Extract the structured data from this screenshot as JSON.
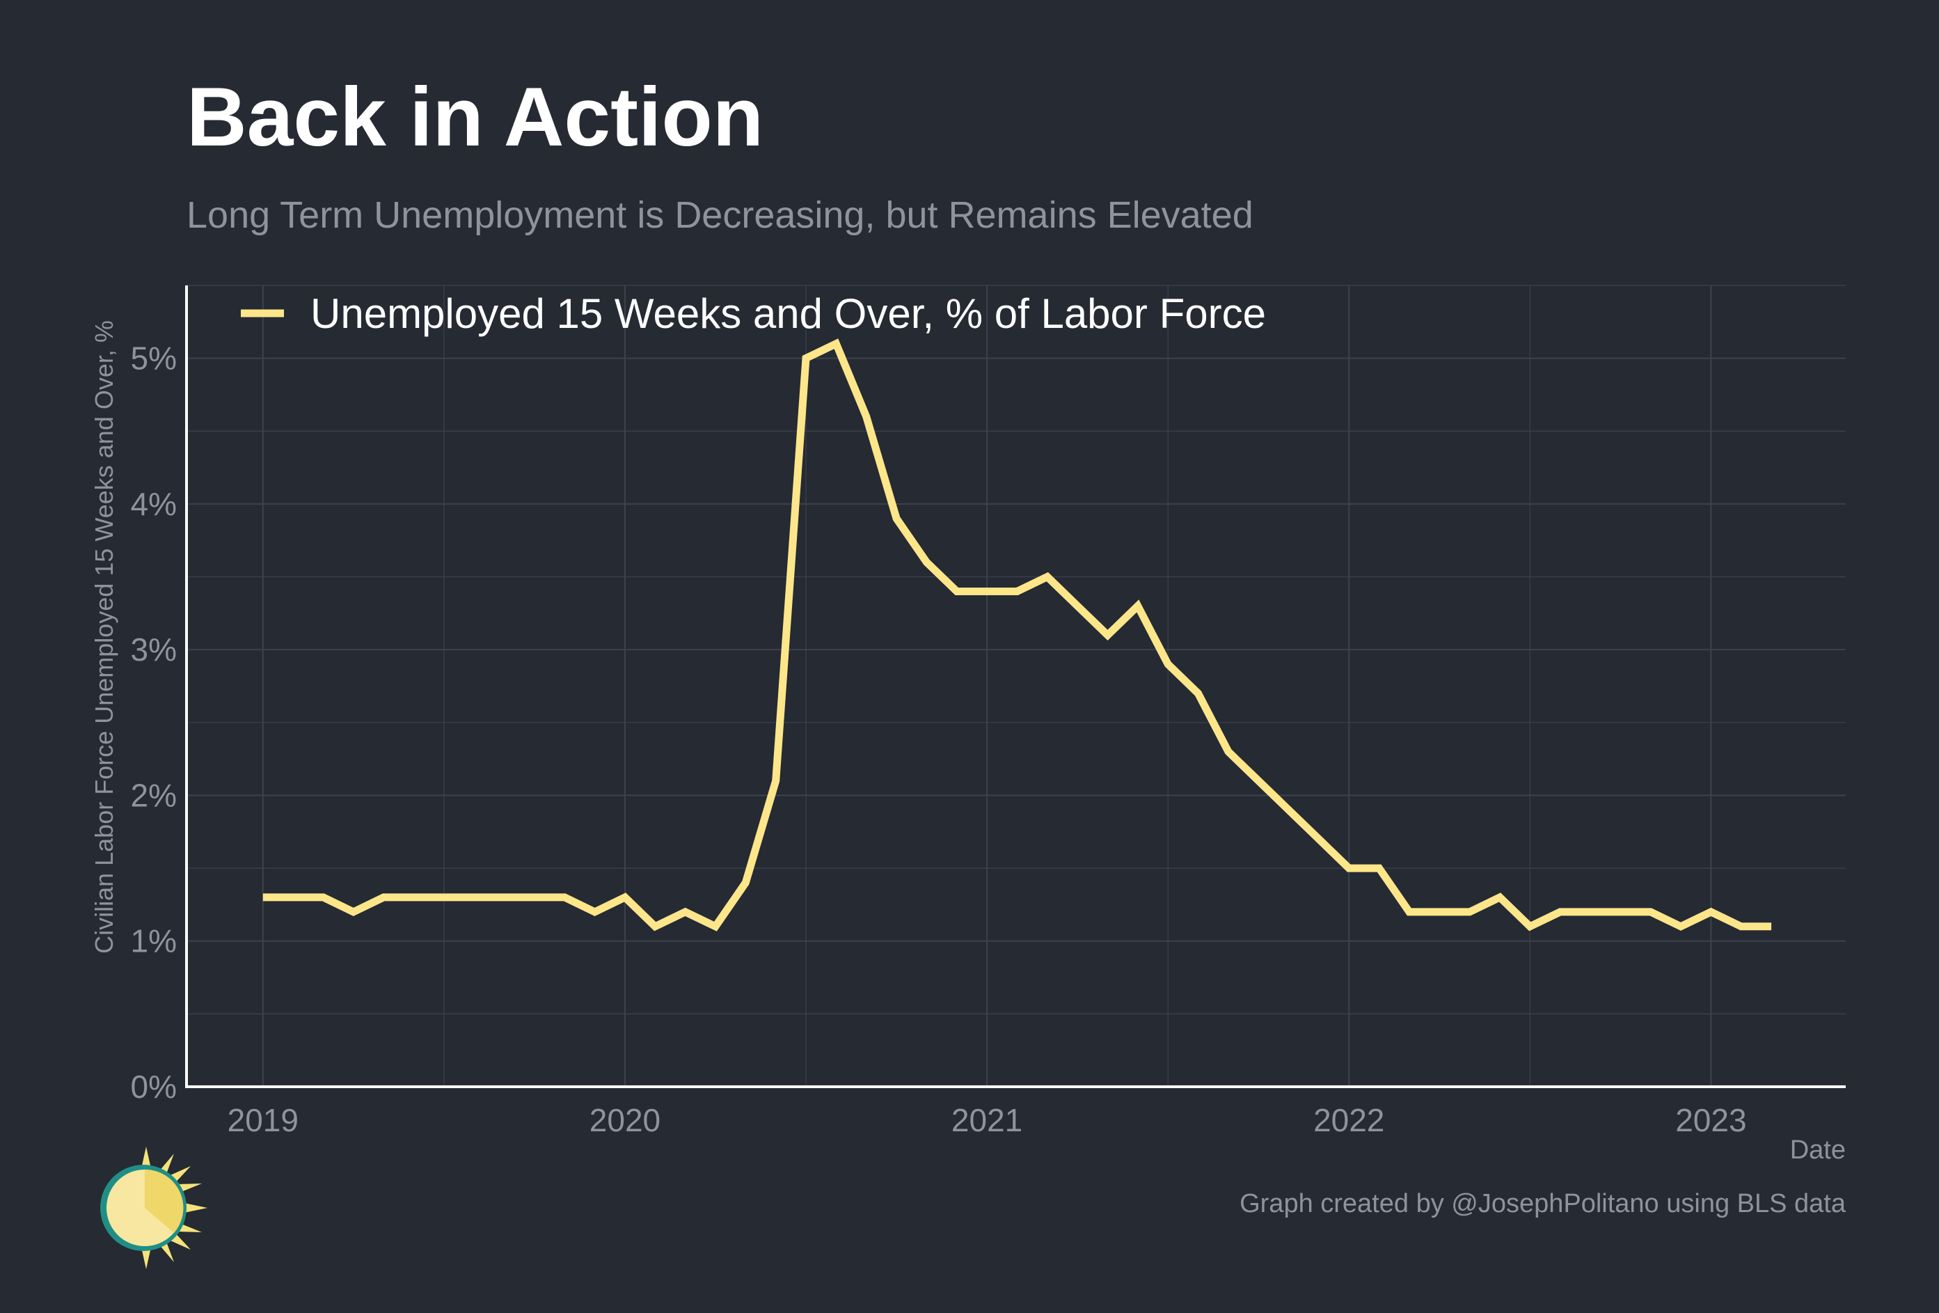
{
  "header": {
    "title": "Back in Action",
    "subtitle": "Long Term Unemployment is Decreasing, but Remains Elevated"
  },
  "footer": {
    "caption": "Graph created by @JosephPolitano using BLS data"
  },
  "colors": {
    "background": "#252a33",
    "series": "#fde68a",
    "grid": "#3d424c",
    "axis": "#ffffff",
    "muted": "#8f939b"
  },
  "chart_data": {
    "type": "line",
    "title": "Back in Action",
    "subtitle": "Long Term Unemployment is Decreasing, but Remains Elevated",
    "xlabel": "Date",
    "ylabel": "Civilian Labor Force Unemployed 15 Weeks and Over, %",
    "xlim": [
      "2018-10-15",
      "2023-05-15"
    ],
    "ylim": [
      0,
      5.5
    ],
    "y_ticks": [
      {
        "value": 0,
        "label": "0%"
      },
      {
        "value": 1,
        "label": "1%"
      },
      {
        "value": 2,
        "label": "2%"
      },
      {
        "value": 3,
        "label": "3%"
      },
      {
        "value": 4,
        "label": "4%"
      },
      {
        "value": 5,
        "label": "5%"
      }
    ],
    "x_ticks": [
      {
        "value": "2019-01",
        "label": "2019"
      },
      {
        "value": "2020-01",
        "label": "2020"
      },
      {
        "value": "2021-01",
        "label": "2021"
      },
      {
        "value": "2022-01",
        "label": "2022"
      },
      {
        "value": "2023-01",
        "label": "2023"
      }
    ],
    "grid": true,
    "legend_position": "top-left",
    "series": [
      {
        "name": "Unemployed 15 Weeks and Over, % of Labor Force",
        "color": "#fde68a",
        "x": [
          "2019-01",
          "2019-02",
          "2019-03",
          "2019-04",
          "2019-05",
          "2019-06",
          "2019-07",
          "2019-08",
          "2019-09",
          "2019-10",
          "2019-11",
          "2019-12",
          "2020-01",
          "2020-02",
          "2020-03",
          "2020-04",
          "2020-05",
          "2020-06",
          "2020-07",
          "2020-08",
          "2020-09",
          "2020-10",
          "2020-11",
          "2020-12",
          "2021-01",
          "2021-02",
          "2021-03",
          "2021-04",
          "2021-05",
          "2021-06",
          "2021-07",
          "2021-08",
          "2021-09",
          "2021-10",
          "2021-11",
          "2021-12",
          "2022-01",
          "2022-02",
          "2022-03",
          "2022-04",
          "2022-05",
          "2022-06",
          "2022-07",
          "2022-08",
          "2022-09",
          "2022-10",
          "2022-11",
          "2022-12",
          "2023-01",
          "2023-02",
          "2023-03"
        ],
        "values": [
          1.3,
          1.3,
          1.3,
          1.2,
          1.3,
          1.3,
          1.3,
          1.3,
          1.3,
          1.3,
          1.3,
          1.2,
          1.3,
          1.1,
          1.2,
          1.1,
          1.4,
          2.1,
          5.0,
          5.1,
          4.6,
          3.9,
          3.6,
          3.4,
          3.4,
          3.4,
          3.5,
          3.3,
          3.1,
          3.3,
          2.9,
          2.7,
          2.3,
          2.1,
          1.9,
          1.7,
          1.5,
          1.5,
          1.2,
          1.2,
          1.2,
          1.3,
          1.1,
          1.2,
          1.2,
          1.2,
          1.2,
          1.1,
          1.2,
          1.1,
          1.1
        ]
      }
    ]
  }
}
